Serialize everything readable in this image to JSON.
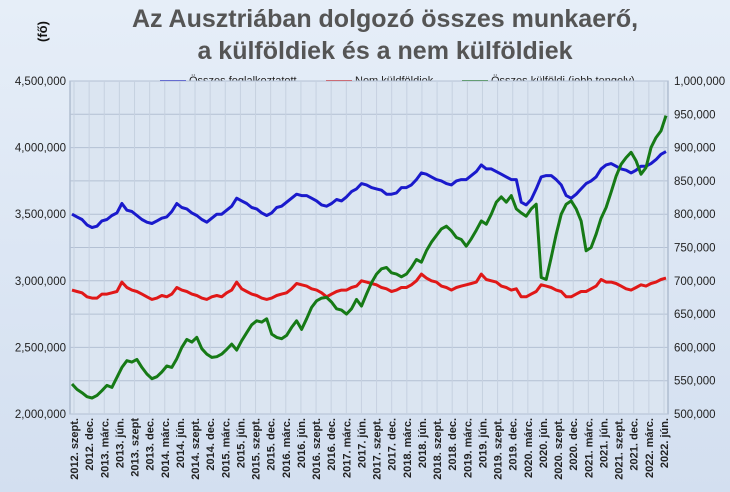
{
  "title_line1": "Az Ausztriában dolgozó összes munkaerő,",
  "title_line2": "a külföldiek és a nem külföldiek",
  "unit_label": "(fő)",
  "chart_data": {
    "type": "line",
    "title": "Az Ausztriában dolgozó összes munkaerő, a külföldiek és a nem külföldiek",
    "ylabel": "(fő)",
    "legend_position": "top",
    "grid": true,
    "ylim_left": [
      2000000,
      4500000
    ],
    "ylim_right": [
      500000,
      1000000
    ],
    "left_ticks": [
      "2,000,000",
      "2,500,000",
      "3,000,000",
      "3,500,000",
      "4,000,000",
      "4,500,000"
    ],
    "right_ticks": [
      "500,000",
      "550,000",
      "600,000",
      "650,000",
      "700,000",
      "750,000",
      "800,000",
      "850,000",
      "900,000",
      "950,000",
      "1,000,000"
    ],
    "x_tick_labels": [
      "2012. szept.",
      "2012. dec.",
      "2013. márc.",
      "2013. jún.",
      "2013. szept",
      "2013. dec.",
      "2014. márc.",
      "2014. jún.",
      "2014. szept.",
      "2014. dec.",
      "2015. márc.",
      "2015. jún.",
      "2015. szept.",
      "2015. dec.",
      "2016. márc.",
      "2016. jún.",
      "2016. szept.",
      "2016. dec.",
      "2017. márc.",
      "2017. jún.",
      "2017. szept.",
      "2017. dec.",
      "2018. márc.",
      "2018. jún.",
      "2018. szept.",
      "2018. dec.",
      "2019. márc.",
      "2019. jún.",
      "2019. szept.",
      "2019. dec.",
      "2020. márc.",
      "2020. jún.",
      "2020. szept.",
      "2020. dec.",
      "2021. márc.",
      "2021. jún.",
      "2021. szept.",
      "2021. dec.",
      "2022. márc.",
      "2022. jún."
    ],
    "series": [
      {
        "name": "Összes foglalkoztatott",
        "axis": "left",
        "color": "#1a1acc",
        "values": [
          3500000,
          3480000,
          3460000,
          3420000,
          3400000,
          3410000,
          3450000,
          3460000,
          3490000,
          3510000,
          3580000,
          3530000,
          3520000,
          3490000,
          3460000,
          3440000,
          3430000,
          3450000,
          3470000,
          3480000,
          3520000,
          3580000,
          3550000,
          3540000,
          3510000,
          3490000,
          3460000,
          3440000,
          3470000,
          3500000,
          3500000,
          3530000,
          3560000,
          3620000,
          3600000,
          3580000,
          3550000,
          3540000,
          3510000,
          3490000,
          3510000,
          3550000,
          3560000,
          3590000,
          3620000,
          3650000,
          3640000,
          3640000,
          3620000,
          3600000,
          3570000,
          3560000,
          3580000,
          3610000,
          3600000,
          3630000,
          3670000,
          3690000,
          3730000,
          3720000,
          3700000,
          3690000,
          3680000,
          3650000,
          3650000,
          3660000,
          3700000,
          3700000,
          3720000,
          3760000,
          3810000,
          3800000,
          3780000,
          3760000,
          3750000,
          3730000,
          3720000,
          3750000,
          3760000,
          3760000,
          3790000,
          3820000,
          3870000,
          3840000,
          3840000,
          3820000,
          3800000,
          3780000,
          3760000,
          3760000,
          3590000,
          3570000,
          3610000,
          3690000,
          3780000,
          3790000,
          3790000,
          3760000,
          3720000,
          3640000,
          3620000,
          3650000,
          3690000,
          3730000,
          3750000,
          3780000,
          3840000,
          3870000,
          3880000,
          3860000,
          3840000,
          3830000,
          3810000,
          3830000,
          3860000,
          3860000,
          3880000,
          3910000,
          3950000,
          3970000
        ]
      },
      {
        "name": "Nem küldföldiek",
        "axis": "left",
        "color": "#e01818",
        "values": [
          2930000,
          2920000,
          2910000,
          2880000,
          2870000,
          2870000,
          2900000,
          2900000,
          2910000,
          2920000,
          2990000,
          2950000,
          2930000,
          2920000,
          2900000,
          2880000,
          2860000,
          2870000,
          2890000,
          2880000,
          2900000,
          2950000,
          2930000,
          2920000,
          2900000,
          2890000,
          2870000,
          2860000,
          2880000,
          2890000,
          2880000,
          2910000,
          2930000,
          2990000,
          2940000,
          2920000,
          2900000,
          2890000,
          2870000,
          2860000,
          2870000,
          2890000,
          2900000,
          2910000,
          2940000,
          2980000,
          2970000,
          2960000,
          2940000,
          2930000,
          2910000,
          2880000,
          2900000,
          2920000,
          2930000,
          2930000,
          2950000,
          2960000,
          3000000,
          2990000,
          2980000,
          2970000,
          2950000,
          2940000,
          2920000,
          2930000,
          2950000,
          2950000,
          2970000,
          3000000,
          3050000,
          3020000,
          3000000,
          2990000,
          2960000,
          2950000,
          2930000,
          2950000,
          2960000,
          2970000,
          2980000,
          2990000,
          3050000,
          3010000,
          3000000,
          2990000,
          2960000,
          2950000,
          2930000,
          2940000,
          2880000,
          2880000,
          2900000,
          2920000,
          2970000,
          2960000,
          2950000,
          2930000,
          2920000,
          2880000,
          2880000,
          2900000,
          2920000,
          2920000,
          2940000,
          2960000,
          3010000,
          2990000,
          2990000,
          2980000,
          2960000,
          2940000,
          2930000,
          2950000,
          2970000,
          2960000,
          2980000,
          2990000,
          3010000,
          3020000
        ]
      },
      {
        "name": "Összes külföldi (jobb tengely)",
        "axis": "right",
        "color": "#167a16",
        "values": [
          545000,
          537000,
          532000,
          526000,
          524000,
          528000,
          535000,
          543000,
          540000,
          555000,
          570000,
          580000,
          578000,
          582000,
          570000,
          560000,
          553000,
          556000,
          563000,
          572000,
          570000,
          583000,
          600000,
          612000,
          608000,
          615000,
          598000,
          590000,
          585000,
          586000,
          590000,
          597000,
          605000,
          596000,
          610000,
          622000,
          634000,
          640000,
          638000,
          643000,
          620000,
          615000,
          613000,
          618000,
          630000,
          640000,
          627000,
          643000,
          660000,
          670000,
          674000,
          675000,
          668000,
          658000,
          656000,
          650000,
          658000,
          672000,
          662000,
          680000,
          697000,
          710000,
          718000,
          720000,
          712000,
          710000,
          706000,
          710000,
          720000,
          732000,
          728000,
          745000,
          758000,
          768000,
          778000,
          782000,
          775000,
          765000,
          762000,
          752000,
          763000,
          776000,
          790000,
          785000,
          800000,
          818000,
          826000,
          818000,
          828000,
          808000,
          802000,
          797000,
          808000,
          815000,
          705000,
          702000,
          735000,
          770000,
          800000,
          815000,
          820000,
          808000,
          790000,
          745000,
          750000,
          770000,
          794000,
          810000,
          833000,
          857000,
          875000,
          885000,
          893000,
          880000,
          860000,
          870000,
          900000,
          915000,
          925000,
          948000
        ]
      }
    ]
  }
}
